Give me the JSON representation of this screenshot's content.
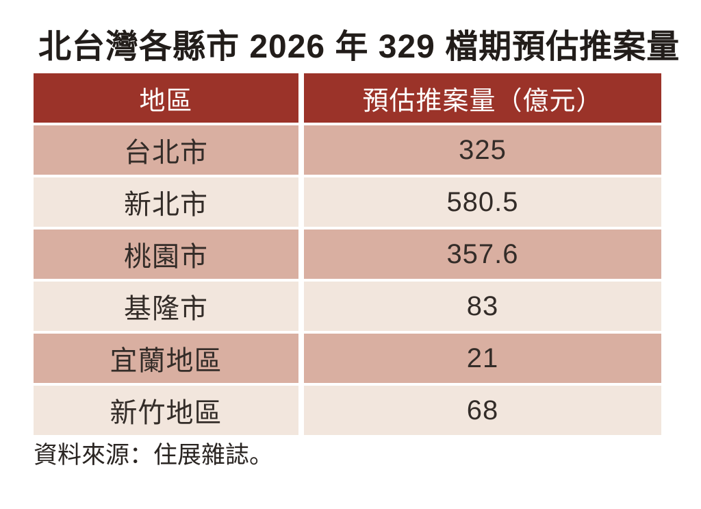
{
  "title": "北台灣各縣市 2026 年 329 檔期預估推案量",
  "table": {
    "columns": [
      "地區",
      "預估推案量（億元）"
    ],
    "rows": [
      {
        "region": "台北市",
        "value": "325"
      },
      {
        "region": "新北市",
        "value": "580.5"
      },
      {
        "region": "桃園市",
        "value": "357.6"
      },
      {
        "region": "基隆市",
        "value": "83"
      },
      {
        "region": "宜蘭地區",
        "value": "21"
      },
      {
        "region": "新竹地區",
        "value": "68"
      }
    ]
  },
  "source": "資料來源：住展雜誌。",
  "colors": {
    "header_bg": "#9b3329",
    "header_text": "#ffffff",
    "row_alt": "#d9afa1",
    "row_base": "#f2e6dd",
    "cell_text": "#332c28",
    "title_text": "#221d1a",
    "source_text": "#2a2522"
  },
  "chart_data": {
    "type": "table",
    "title": "北台灣各縣市 2026 年 329 檔期預估推案量",
    "columns": [
      "地區",
      "預估推案量（億元）"
    ],
    "categories": [
      "台北市",
      "新北市",
      "桃園市",
      "基隆市",
      "宜蘭地區",
      "新竹地區"
    ],
    "values": [
      325,
      580.5,
      357.6,
      83,
      21,
      68
    ],
    "unit": "億元",
    "source": "資料來源：住展雜誌。",
    "legend": "none",
    "grid": "off"
  }
}
